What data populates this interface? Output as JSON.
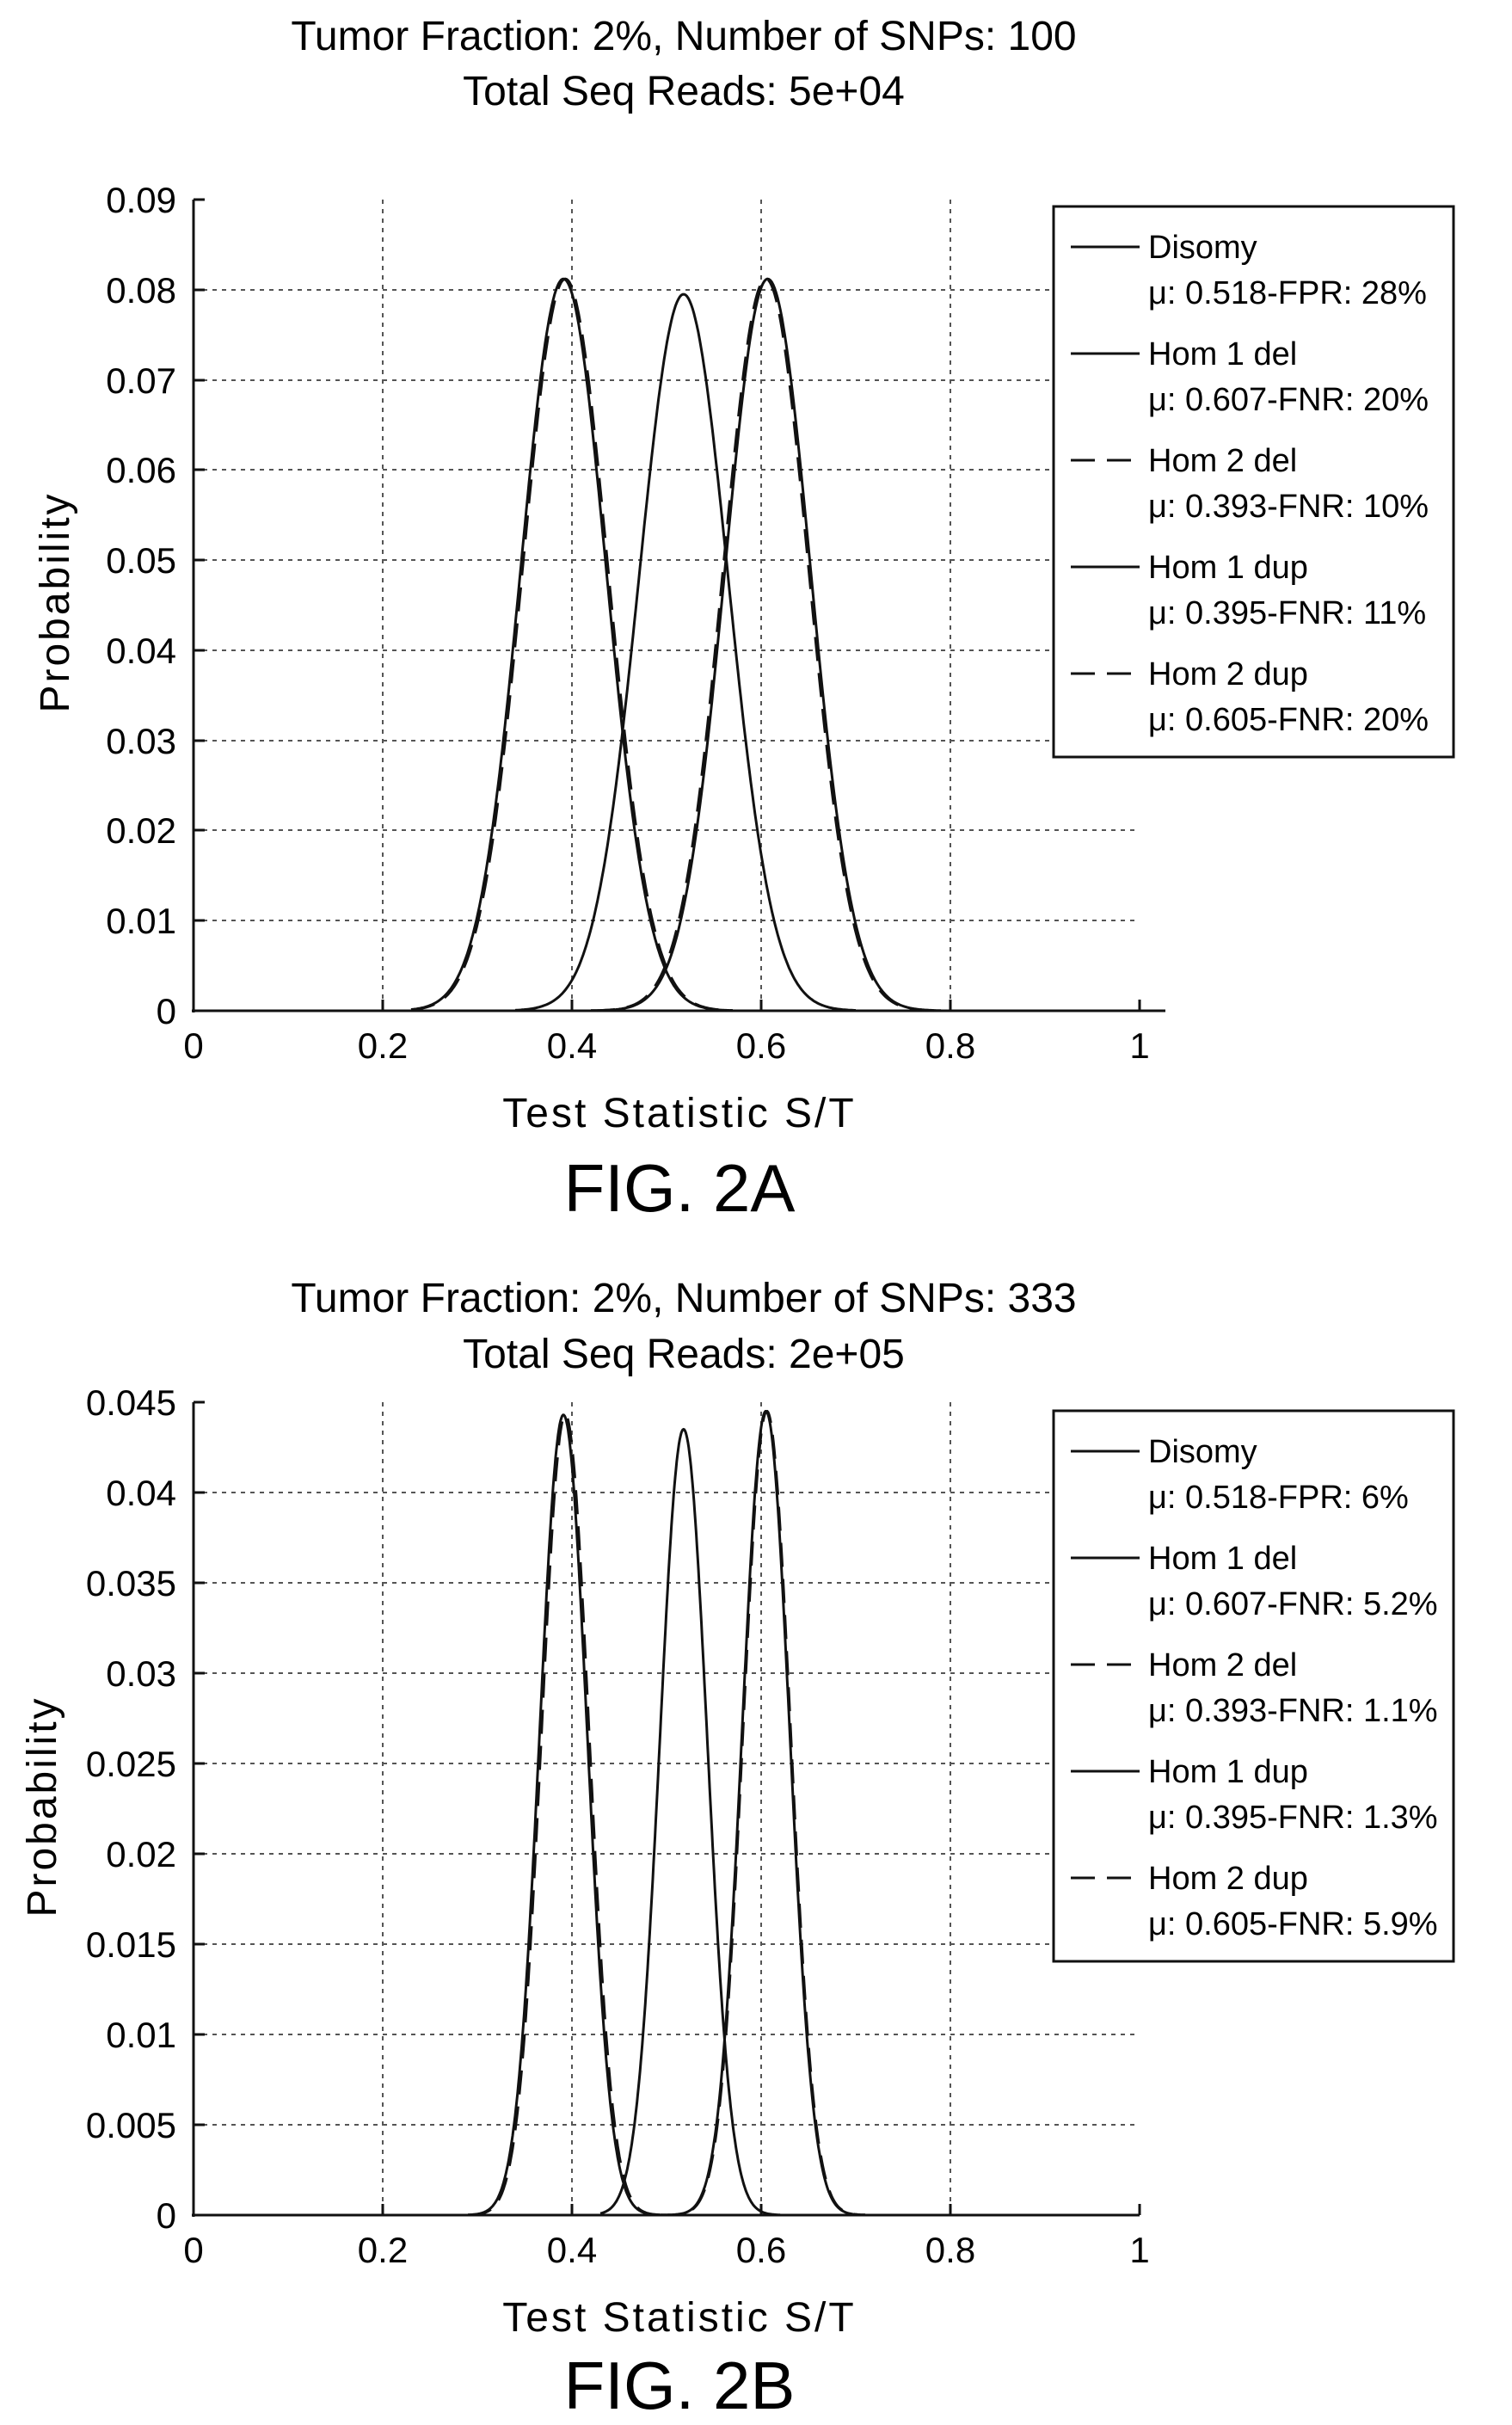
{
  "chart_data": [
    {
      "type": "line",
      "title": "Tumor Fraction: 2%, Number of SNPs: 100",
      "subtitle": "Total Seq Reads: 5e+04",
      "xlabel": "Test Statistic S/T",
      "ylabel": "Probability",
      "xlim": [
        0,
        1
      ],
      "ylim": [
        0,
        0.09
      ],
      "xticks": [
        "0",
        "0.2",
        "0.4",
        "0.6",
        "0.8",
        "1"
      ],
      "yticks": [
        "0",
        "0.01",
        "0.02",
        "0.03",
        "0.04",
        "0.05",
        "0.06",
        "0.07",
        "0.08",
        "0.09"
      ],
      "grid": true,
      "legend_position": "top-right",
      "caption": "FIG. 2A",
      "series": [
        {
          "name": "Disomy",
          "stat": "μ: 0.518-FPR: 28%",
          "dash": "solid",
          "mean": 0.518,
          "sd": 0.047,
          "peak": 0.0795,
          "lo": 0.34,
          "hi": 0.7
        },
        {
          "name": "Hom 1 del",
          "stat": "μ: 0.607-FNR: 20%",
          "dash": "solid",
          "mean": 0.607,
          "sd": 0.045,
          "peak": 0.0812,
          "lo": 0.42,
          "hi": 0.79
        },
        {
          "name": "Hom 2 del",
          "stat": "μ: 0.393-FNR: 10%",
          "dash": "dashed",
          "mean": 0.393,
          "sd": 0.045,
          "peak": 0.0812,
          "lo": 0.23,
          "hi": 0.57
        },
        {
          "name": "Hom 1 dup",
          "stat": "μ: 0.395-FNR: 11%",
          "dash": "solid",
          "mean": 0.391,
          "sd": 0.045,
          "peak": 0.0812,
          "lo": 0.23,
          "hi": 0.57
        },
        {
          "name": "Hom 2 dup",
          "stat": "μ: 0.605-FNR: 20%",
          "dash": "dashed",
          "mean": 0.605,
          "sd": 0.045,
          "peak": 0.0812,
          "lo": 0.42,
          "hi": 0.79
        }
      ]
    },
    {
      "type": "line",
      "title": "Tumor Fraction: 2%, Number of SNPs: 333",
      "subtitle": "Total Seq Reads: 2e+05",
      "xlabel": "Test Statistic S/T",
      "ylabel": "Probability",
      "xlim": [
        0,
        1
      ],
      "ylim": [
        0,
        0.045
      ],
      "xticks": [
        "0",
        "0.2",
        "0.4",
        "0.6",
        "0.8",
        "1"
      ],
      "yticks": [
        "0",
        "0.005",
        "0.01",
        "0.015",
        "0.02",
        "0.025",
        "0.03",
        "0.035",
        "0.04",
        "0.045"
      ],
      "grid": true,
      "legend_position": "top-right",
      "caption": "FIG. 2B",
      "series": [
        {
          "name": "Disomy",
          "stat": "μ: 0.518-FPR: 6%",
          "dash": "solid",
          "mean": 0.518,
          "sd": 0.025,
          "peak": 0.0435,
          "lo": 0.43,
          "hi": 0.62
        },
        {
          "name": "Hom 1 del",
          "stat": "μ: 0.607-FNR: 5.2%",
          "dash": "solid",
          "mean": 0.605,
          "sd": 0.025,
          "peak": 0.0445,
          "lo": 0.49,
          "hi": 0.71
        },
        {
          "name": "Hom 2 del",
          "stat": "μ: 0.393-FNR: 1.1%",
          "dash": "dashed",
          "mean": 0.393,
          "sd": 0.025,
          "peak": 0.0443,
          "lo": 0.29,
          "hi": 0.5
        },
        {
          "name": "Hom 1 dup",
          "stat": "μ: 0.395-FNR: 1.3%",
          "dash": "solid",
          "mean": 0.391,
          "sd": 0.025,
          "peak": 0.0443,
          "lo": 0.29,
          "hi": 0.5
        },
        {
          "name": "Hom 2 dup",
          "stat": "μ: 0.605-FNR: 5.9%",
          "dash": "dashed",
          "mean": 0.606,
          "sd": 0.025,
          "peak": 0.0445,
          "lo": 0.49,
          "hi": 0.71
        }
      ]
    }
  ]
}
